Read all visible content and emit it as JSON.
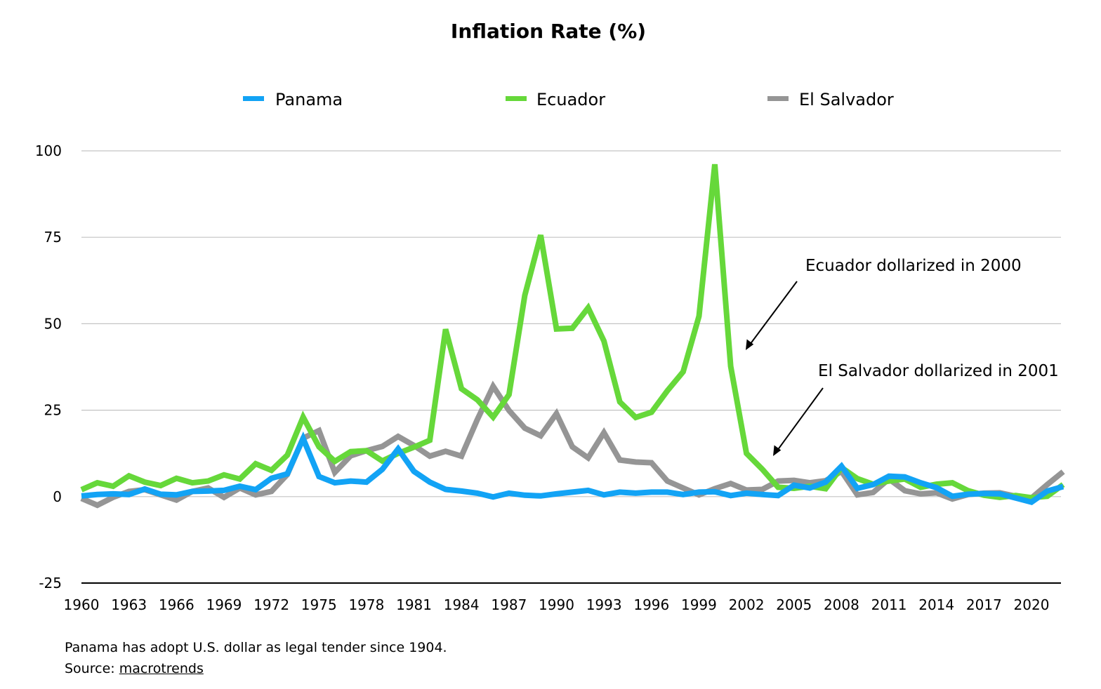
{
  "chart_data": {
    "type": "line",
    "title": "Inflation Rate (%)",
    "xlabel": "",
    "ylabel": "",
    "xlim": [
      1960,
      2022
    ],
    "ylim": [
      -25,
      100
    ],
    "yticks": [
      100,
      75,
      50,
      25,
      0,
      -25
    ],
    "xticks": [
      1960,
      1963,
      1966,
      1969,
      1972,
      1975,
      1978,
      1981,
      1984,
      1987,
      1990,
      1993,
      1996,
      1999,
      2002,
      2005,
      2008,
      2011,
      2014,
      2017,
      2020
    ],
    "grid": "horizontal",
    "legend": "top",
    "x": [
      1960,
      1961,
      1962,
      1963,
      1964,
      1965,
      1966,
      1967,
      1968,
      1969,
      1970,
      1971,
      1972,
      1973,
      1974,
      1975,
      1976,
      1977,
      1978,
      1979,
      1980,
      1981,
      1982,
      1983,
      1984,
      1985,
      1986,
      1987,
      1988,
      1989,
      1990,
      1991,
      1992,
      1993,
      1994,
      1995,
      1996,
      1997,
      1998,
      1999,
      2000,
      2001,
      2002,
      2003,
      2004,
      2005,
      2006,
      2007,
      2008,
      2009,
      2010,
      2011,
      2012,
      2013,
      2014,
      2015,
      2016,
      2017,
      2018,
      2019,
      2020,
      2021,
      2022
    ],
    "series": [
      {
        "name": "Panama",
        "color": "#12a3f5",
        "values": [
          0.2,
          0.6,
          0.8,
          0.6,
          2.2,
          0.7,
          0.5,
          1.5,
          1.6,
          1.8,
          3.0,
          2.0,
          5.3,
          6.6,
          16.8,
          5.8,
          4.0,
          4.5,
          4.2,
          7.9,
          13.8,
          7.3,
          4.2,
          2.1,
          1.6,
          1.0,
          -0.1,
          1.0,
          0.4,
          0.2,
          0.8,
          1.3,
          1.8,
          0.5,
          1.3,
          1.0,
          1.3,
          1.3,
          0.6,
          1.3,
          1.4,
          0.3,
          1.0,
          0.6,
          0.3,
          3.3,
          2.5,
          4.2,
          8.8,
          2.4,
          3.5,
          5.9,
          5.7,
          4.0,
          2.6,
          0.1,
          0.7,
          0.9,
          0.8,
          -0.4,
          -1.6,
          1.6,
          2.9
        ]
      },
      {
        "name": "Ecuador",
        "color": "#66d83a",
        "values": [
          2.0,
          4.0,
          3.0,
          6.0,
          4.2,
          3.2,
          5.3,
          4.0,
          4.5,
          6.3,
          5.1,
          9.5,
          7.6,
          12.0,
          23.0,
          14.4,
          10.2,
          13.0,
          13.3,
          10.3,
          12.5,
          14.3,
          16.3,
          48.4,
          31.2,
          28.0,
          23.0,
          29.5,
          58.2,
          75.6,
          48.5,
          48.7,
          54.6,
          45.0,
          27.4,
          22.9,
          24.4,
          30.6,
          36.1,
          52.2,
          96.1,
          37.7,
          12.5,
          7.9,
          2.7,
          2.4,
          3.0,
          2.3,
          8.4,
          5.2,
          3.6,
          4.5,
          5.1,
          2.7,
          3.6,
          4.0,
          1.7,
          0.4,
          -0.2,
          0.3,
          -0.3,
          0.1,
          3.5
        ]
      },
      {
        "name": "El Salvador",
        "color": "#959595",
        "values": [
          -0.5,
          -2.5,
          -0.2,
          1.5,
          2.0,
          0.5,
          -1.0,
          1.5,
          2.5,
          -0.2,
          2.5,
          0.5,
          1.5,
          6.4,
          16.9,
          19.1,
          7.0,
          11.8,
          13.3,
          14.5,
          17.4,
          14.8,
          11.7,
          13.1,
          11.7,
          22.3,
          31.9,
          24.9,
          19.8,
          17.6,
          24.0,
          14.4,
          11.2,
          18.5,
          10.6,
          10.0,
          9.8,
          4.5,
          2.5,
          0.5,
          2.3,
          3.8,
          1.9,
          2.1,
          4.5,
          4.7,
          4.0,
          4.6,
          7.3,
          0.5,
          1.2,
          5.1,
          1.7,
          0.8,
          1.1,
          -0.7,
          0.6,
          1.0,
          1.1,
          0.1,
          -0.4,
          3.5,
          7.2
        ]
      }
    ],
    "annotations": [
      {
        "text": "Ecuador dollarized in 2000"
      },
      {
        "text": "El Salvador dollarized in 2001"
      }
    ]
  },
  "footnote": {
    "line1": "Panama has adopt U.S. dollar as legal tender since 1904.",
    "source_prefix": "Source: ",
    "source_link": "macrotrends"
  }
}
